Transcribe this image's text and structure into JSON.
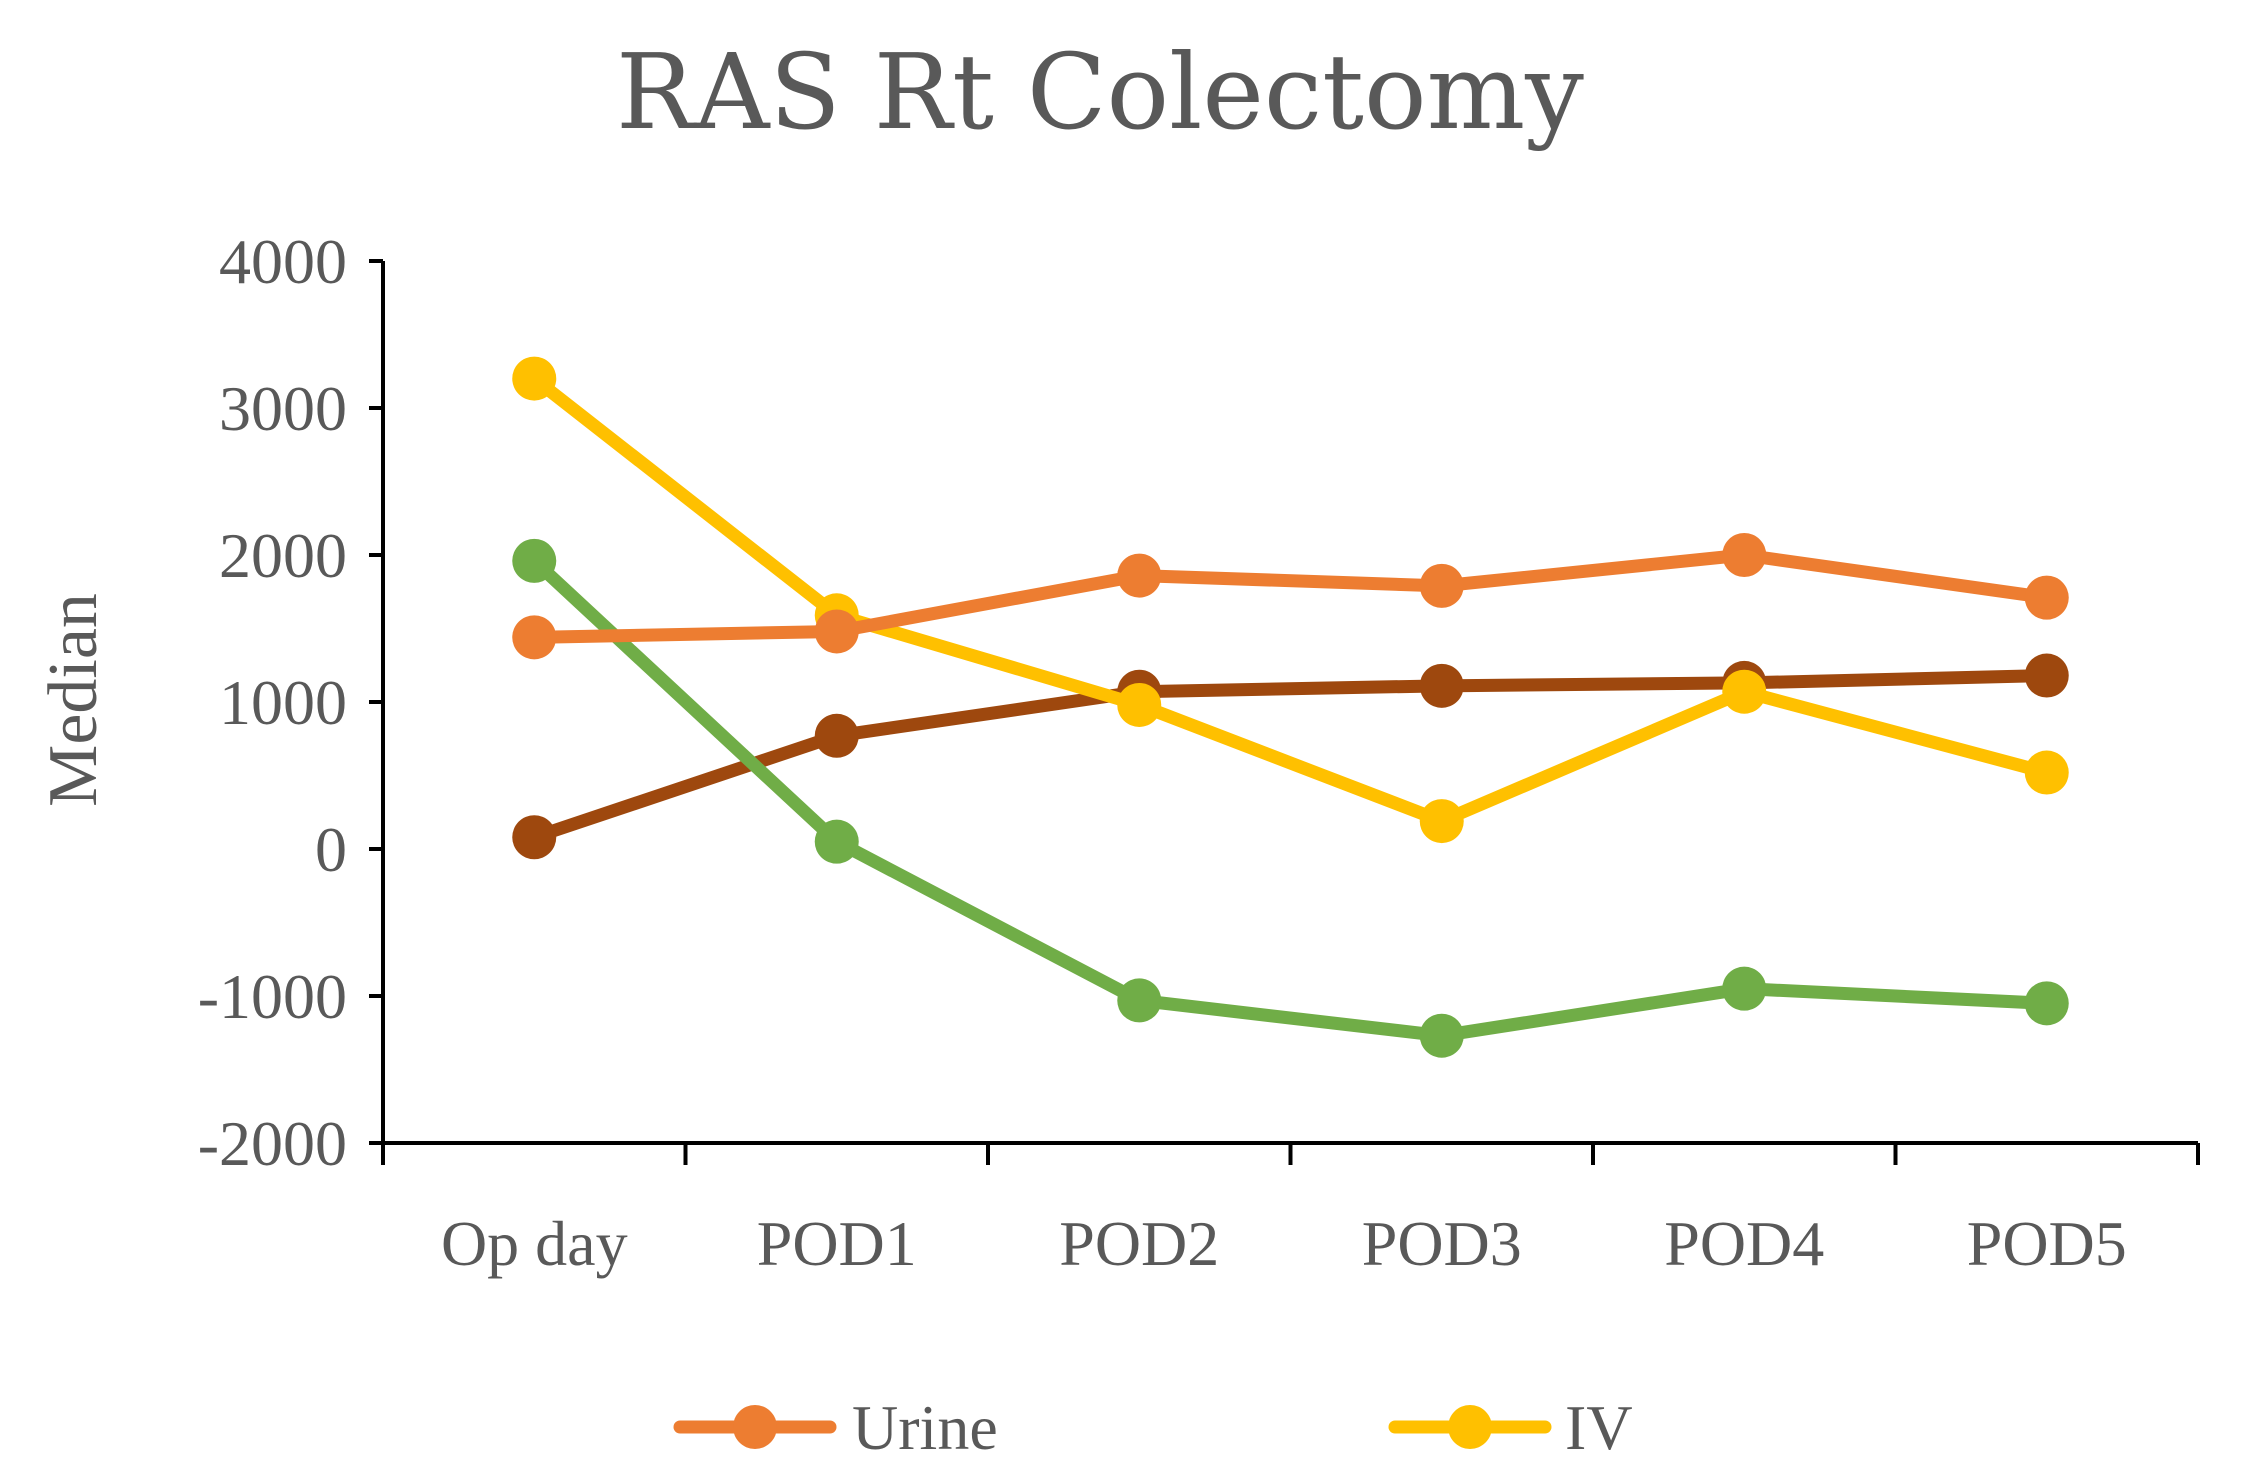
{
  "chart_data": {
    "type": "line",
    "title": "RAS Rt Colectomy",
    "xlabel": "",
    "ylabel": "Median",
    "ylim": [
      -2000,
      4000
    ],
    "yticks": [
      4000,
      3000,
      2000,
      1000,
      0,
      -1000,
      -2000
    ],
    "categories": [
      "Op day",
      "POD1",
      "POD2",
      "POD3",
      "POD4",
      "POD5"
    ],
    "series": [
      {
        "name": "Urine",
        "color": "#ED7D31",
        "values": [
          1440,
          1480,
          1860,
          1790,
          2000,
          1710
        ]
      },
      {
        "name": "IV",
        "color": "#FFC000",
        "values": [
          3200,
          1590,
          980,
          190,
          1070,
          520
        ]
      },
      {
        "name": "",
        "color": "#70AD47",
        "values": [
          1960,
          50,
          -1030,
          -1270,
          -950,
          -1050
        ]
      },
      {
        "name": "",
        "color": "#9E480E",
        "values": [
          80,
          770,
          1070,
          1110,
          1130,
          1180
        ]
      }
    ],
    "legend": {
      "placement": "bottom",
      "entries": [
        "Urine",
        "IV"
      ]
    },
    "grid": false
  }
}
